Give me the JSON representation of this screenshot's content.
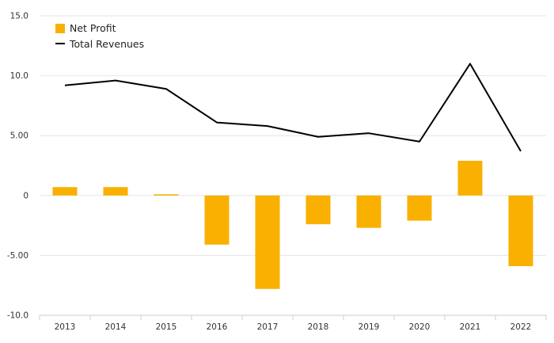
{
  "chart_data": {
    "type": "bar",
    "categories": [
      "2013",
      "2014",
      "2015",
      "2016",
      "2017",
      "2018",
      "2019",
      "2020",
      "2021",
      "2022"
    ],
    "series": [
      {
        "name": "Net Profit",
        "type": "bar",
        "color": "#f9b000",
        "values": [
          0.7,
          0.7,
          0.1,
          -4.1,
          -7.8,
          -2.4,
          -2.7,
          -2.1,
          2.9,
          -5.9
        ]
      },
      {
        "name": "Total Revenues",
        "type": "line",
        "color": "#000000",
        "values": [
          9.2,
          9.6,
          8.9,
          6.1,
          5.8,
          4.9,
          5.2,
          4.5,
          11.0,
          3.7
        ]
      }
    ],
    "ylim": [
      -10,
      15
    ],
    "yticks": [
      15,
      10,
      5,
      0,
      -5,
      -10
    ],
    "ytick_labels": [
      "15.0",
      "10.0",
      "5.00",
      "0",
      "-5.00",
      "-10.0"
    ],
    "grid": true,
    "legend_position": "top-left"
  }
}
